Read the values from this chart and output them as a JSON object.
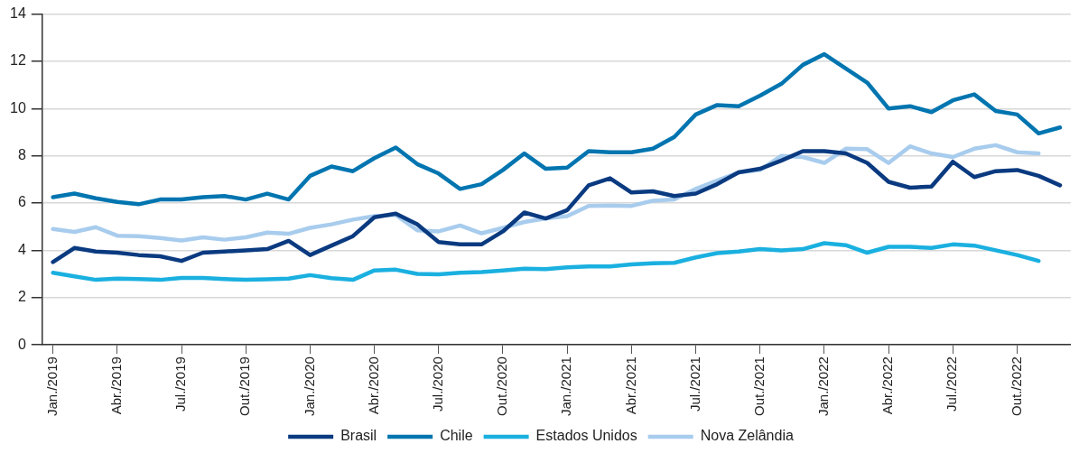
{
  "chart_data": {
    "type": "line",
    "categories": [
      "Jan./2019",
      null,
      null,
      "Abr./2019",
      null,
      null,
      "Jul./2019",
      null,
      null,
      "Out./2019",
      null,
      null,
      "Jan./2020",
      null,
      null,
      "Abr./2020",
      null,
      null,
      "Jul./2020",
      null,
      null,
      "Out./2020",
      null,
      null,
      "Jan./2021",
      null,
      null,
      "Abr./2021",
      null,
      null,
      "Jul./2021",
      null,
      null,
      "Out./2021",
      null,
      null,
      "Jan./2022",
      null,
      null,
      "Abr./2022",
      null,
      null,
      "Jul./2022",
      null,
      null,
      "Out./2022",
      null,
      null
    ],
    "series": [
      {
        "name": "Brasil",
        "color": "#0a3a80",
        "values": [
          3.5,
          4.1,
          3.95,
          3.9,
          3.8,
          3.75,
          3.55,
          3.9,
          3.95,
          4.0,
          4.05,
          4.4,
          3.8,
          4.2,
          4.6,
          5.4,
          5.55,
          5.1,
          4.35,
          4.25,
          4.25,
          4.8,
          5.6,
          5.35,
          5.7,
          6.75,
          7.05,
          6.45,
          6.5,
          6.3,
          6.4,
          6.8,
          7.3,
          7.45,
          7.8,
          8.2,
          8.2,
          8.1,
          7.7,
          6.9,
          6.65,
          6.7,
          7.75,
          7.1,
          7.35,
          7.4,
          7.15,
          6.75
        ]
      },
      {
        "name": "Chile",
        "color": "#0075b0",
        "values": [
          6.25,
          6.4,
          6.2,
          6.05,
          5.95,
          6.15,
          6.15,
          6.25,
          6.3,
          6.15,
          6.4,
          6.15,
          7.15,
          7.55,
          7.35,
          7.9,
          8.35,
          7.65,
          7.25,
          6.6,
          6.8,
          7.4,
          8.1,
          7.45,
          7.5,
          8.2,
          8.15,
          8.15,
          8.3,
          8.8,
          9.75,
          10.15,
          10.1,
          10.55,
          11.05,
          11.85,
          12.3,
          11.7,
          11.1,
          10.0,
          10.1,
          9.85,
          10.35,
          10.6,
          9.9,
          9.75,
          8.95,
          9.2
        ]
      },
      {
        "name": "Estados Unidos",
        "color": "#1ab0e0",
        "values": [
          3.05,
          2.9,
          2.75,
          2.8,
          2.78,
          2.75,
          2.83,
          2.83,
          2.78,
          2.75,
          2.77,
          2.8,
          2.95,
          2.82,
          2.75,
          3.15,
          3.18,
          3.0,
          2.98,
          3.05,
          3.08,
          3.15,
          3.22,
          3.2,
          3.28,
          3.32,
          3.32,
          3.4,
          3.45,
          3.47,
          3.7,
          3.88,
          3.95,
          4.05,
          4.0,
          4.05,
          4.3,
          4.22,
          3.9,
          4.15,
          4.15,
          4.1,
          4.25,
          4.2,
          4.0,
          3.8,
          3.55,
          null
        ]
      },
      {
        "name": "Nova Zelândia",
        "color": "#a8cced",
        "values": [
          4.9,
          4.78,
          4.98,
          4.62,
          4.6,
          4.52,
          4.42,
          4.55,
          4.45,
          4.55,
          4.75,
          4.7,
          4.95,
          5.1,
          5.3,
          5.45,
          5.5,
          4.85,
          4.8,
          5.05,
          4.72,
          4.95,
          5.2,
          5.35,
          5.45,
          5.88,
          5.9,
          5.88,
          6.1,
          6.15,
          6.6,
          6.95,
          7.3,
          7.4,
          8.0,
          7.95,
          7.7,
          8.3,
          8.28,
          7.7,
          8.4,
          8.1,
          7.95,
          8.3,
          8.45,
          8.15,
          8.1,
          null
        ]
      }
    ],
    "ylim": [
      0,
      14
    ],
    "yticks": [
      0,
      2,
      4,
      6,
      8,
      10,
      12,
      14
    ],
    "grid": "y",
    "legend": "bottom",
    "marker": "none",
    "line_style": "solid"
  }
}
